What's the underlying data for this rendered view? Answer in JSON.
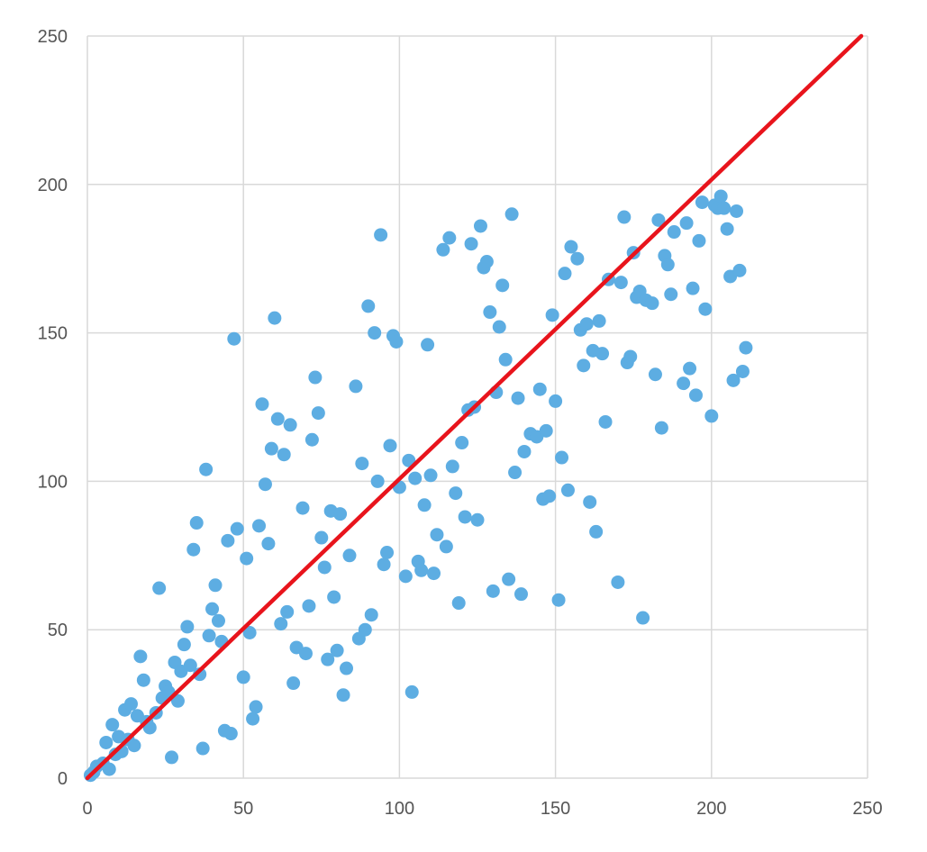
{
  "chart_data": {
    "type": "scatter",
    "title": "",
    "xlabel": "",
    "ylabel": "",
    "xlim": [
      0,
      250
    ],
    "ylim": [
      0,
      250
    ],
    "x_ticks": [
      "0",
      "50",
      "100",
      "150",
      "200",
      "250"
    ],
    "y_ticks": [
      "0",
      "50",
      "100",
      "150",
      "200",
      "250"
    ],
    "grid": true,
    "legend": "none",
    "point_color": "#5dade2",
    "line_color": "#e8141c",
    "reference_line": {
      "x": [
        0,
        248
      ],
      "y": [
        0,
        250
      ]
    },
    "points": [
      [
        1,
        1
      ],
      [
        2,
        2
      ],
      [
        3,
        4
      ],
      [
        5,
        5
      ],
      [
        6,
        12
      ],
      [
        7,
        3
      ],
      [
        8,
        18
      ],
      [
        9,
        8
      ],
      [
        10,
        14
      ],
      [
        11,
        9
      ],
      [
        12,
        23
      ],
      [
        13,
        13
      ],
      [
        14,
        25
      ],
      [
        15,
        11
      ],
      [
        16,
        21
      ],
      [
        17,
        41
      ],
      [
        18,
        33
      ],
      [
        19,
        19
      ],
      [
        20,
        17
      ],
      [
        22,
        22
      ],
      [
        23,
        64
      ],
      [
        24,
        27
      ],
      [
        25,
        31
      ],
      [
        26,
        29
      ],
      [
        27,
        7
      ],
      [
        28,
        39
      ],
      [
        29,
        26
      ],
      [
        30,
        36
      ],
      [
        31,
        45
      ],
      [
        32,
        51
      ],
      [
        33,
        38
      ],
      [
        34,
        77
      ],
      [
        35,
        86
      ],
      [
        36,
        35
      ],
      [
        37,
        10
      ],
      [
        38,
        104
      ],
      [
        39,
        48
      ],
      [
        40,
        57
      ],
      [
        41,
        65
      ],
      [
        42,
        53
      ],
      [
        43,
        46
      ],
      [
        44,
        16
      ],
      [
        45,
        80
      ],
      [
        46,
        15
      ],
      [
        47,
        148
      ],
      [
        48,
        84
      ],
      [
        50,
        34
      ],
      [
        51,
        74
      ],
      [
        52,
        49
      ],
      [
        53,
        20
      ],
      [
        54,
        24
      ],
      [
        55,
        85
      ],
      [
        56,
        126
      ],
      [
        57,
        99
      ],
      [
        58,
        79
      ],
      [
        59,
        111
      ],
      [
        60,
        155
      ],
      [
        61,
        121
      ],
      [
        62,
        52
      ],
      [
        63,
        109
      ],
      [
        64,
        56
      ],
      [
        65,
        119
      ],
      [
        66,
        32
      ],
      [
        67,
        44
      ],
      [
        69,
        91
      ],
      [
        70,
        42
      ],
      [
        71,
        58
      ],
      [
        72,
        114
      ],
      [
        73,
        135
      ],
      [
        74,
        123
      ],
      [
        75,
        81
      ],
      [
        76,
        71
      ],
      [
        77,
        40
      ],
      [
        78,
        90
      ],
      [
        79,
        61
      ],
      [
        80,
        43
      ],
      [
        81,
        89
      ],
      [
        82,
        28
      ],
      [
        83,
        37
      ],
      [
        84,
        75
      ],
      [
        86,
        132
      ],
      [
        87,
        47
      ],
      [
        88,
        106
      ],
      [
        89,
        50
      ],
      [
        90,
        159
      ],
      [
        91,
        55
      ],
      [
        92,
        150
      ],
      [
        93,
        100
      ],
      [
        94,
        183
      ],
      [
        95,
        72
      ],
      [
        96,
        76
      ],
      [
        97,
        112
      ],
      [
        98,
        149
      ],
      [
        99,
        147
      ],
      [
        100,
        98
      ],
      [
        102,
        68
      ],
      [
        103,
        107
      ],
      [
        104,
        29
      ],
      [
        105,
        101
      ],
      [
        106,
        73
      ],
      [
        107,
        70
      ],
      [
        108,
        92
      ],
      [
        109,
        146
      ],
      [
        110,
        102
      ],
      [
        111,
        69
      ],
      [
        112,
        82
      ],
      [
        114,
        178
      ],
      [
        115,
        78
      ],
      [
        116,
        182
      ],
      [
        117,
        105
      ],
      [
        118,
        96
      ],
      [
        119,
        59
      ],
      [
        120,
        113
      ],
      [
        121,
        88
      ],
      [
        122,
        124
      ],
      [
        123,
        180
      ],
      [
        124,
        125
      ],
      [
        125,
        87
      ],
      [
        126,
        186
      ],
      [
        127,
        172
      ],
      [
        128,
        174
      ],
      [
        129,
        157
      ],
      [
        130,
        63
      ],
      [
        131,
        130
      ],
      [
        132,
        152
      ],
      [
        133,
        166
      ],
      [
        134,
        141
      ],
      [
        135,
        67
      ],
      [
        136,
        190
      ],
      [
        137,
        103
      ],
      [
        138,
        128
      ],
      [
        139,
        62
      ],
      [
        140,
        110
      ],
      [
        142,
        116
      ],
      [
        144,
        115
      ],
      [
        145,
        131
      ],
      [
        146,
        94
      ],
      [
        147,
        117
      ],
      [
        148,
        95
      ],
      [
        149,
        156
      ],
      [
        150,
        127
      ],
      [
        151,
        60
      ],
      [
        152,
        108
      ],
      [
        153,
        170
      ],
      [
        154,
        97
      ],
      [
        155,
        179
      ],
      [
        157,
        175
      ],
      [
        158,
        151
      ],
      [
        159,
        139
      ],
      [
        160,
        153
      ],
      [
        161,
        93
      ],
      [
        162,
        144
      ],
      [
        163,
        83
      ],
      [
        164,
        154
      ],
      [
        165,
        143
      ],
      [
        166,
        120
      ],
      [
        167,
        168
      ],
      [
        170,
        66
      ],
      [
        171,
        167
      ],
      [
        172,
        189
      ],
      [
        173,
        140
      ],
      [
        174,
        142
      ],
      [
        175,
        177
      ],
      [
        176,
        162
      ],
      [
        177,
        164
      ],
      [
        178,
        54
      ],
      [
        179,
        161
      ],
      [
        181,
        160
      ],
      [
        182,
        136
      ],
      [
        183,
        188
      ],
      [
        184,
        118
      ],
      [
        185,
        176
      ],
      [
        186,
        173
      ],
      [
        187,
        163
      ],
      [
        188,
        184
      ],
      [
        191,
        133
      ],
      [
        192,
        187
      ],
      [
        193,
        138
      ],
      [
        194,
        165
      ],
      [
        195,
        129
      ],
      [
        196,
        181
      ],
      [
        197,
        194
      ],
      [
        198,
        158
      ],
      [
        200,
        122
      ],
      [
        201,
        193
      ],
      [
        202,
        192
      ],
      [
        203,
        196
      ],
      [
        204,
        192
      ],
      [
        205,
        185
      ],
      [
        206,
        169
      ],
      [
        207,
        134
      ],
      [
        208,
        191
      ],
      [
        209,
        171
      ],
      [
        210,
        137
      ],
      [
        211,
        145
      ]
    ]
  }
}
